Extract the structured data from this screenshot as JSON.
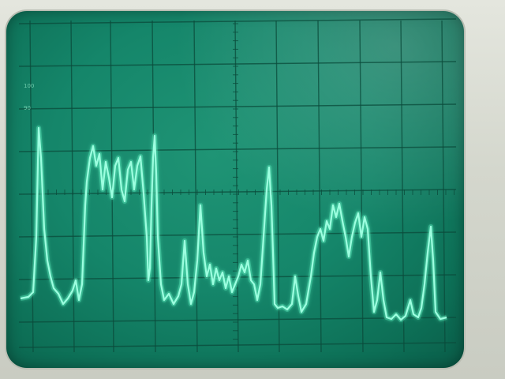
{
  "graticule": {
    "scale_top": "100",
    "scale_second": "90"
  },
  "colors": {
    "screen": "#15866a",
    "trace": "#7fffd2",
    "grid": "#0b4b3b",
    "bezel": "#d9dcd2"
  }
}
